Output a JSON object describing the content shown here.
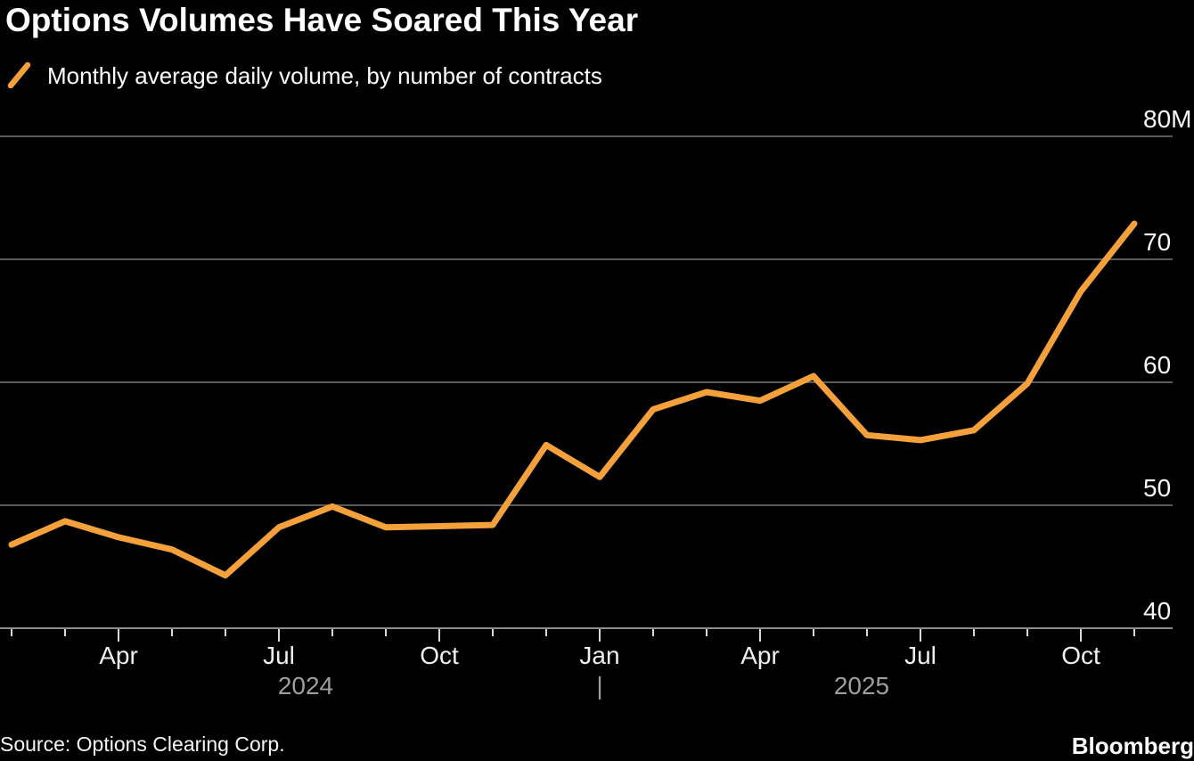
{
  "header": {
    "title": "Options Volumes Have Soared This Year",
    "legend": {
      "swatch_icon": "orange-line-swatch",
      "swatch_color": "#F4A13C",
      "label": "Monthly average daily volume, by number of contracts"
    }
  },
  "chart_data": {
    "type": "line",
    "title": "Options Volumes Have Soared This Year",
    "subtitle": "Monthly average daily volume, by number of contracts",
    "unit": "millions of contracts",
    "grid": "horizontal",
    "legend_position": "top-left",
    "background_color": "#000000",
    "gridline_color": "#595959",
    "axis_color": "#8d8d8d",
    "tick_color": "#d9d9d9",
    "y_label_color": "#f7f7f7",
    "month_label_color": "#efefef",
    "year_label_color": "#9e9e9e",
    "ylim": [
      40,
      80
    ],
    "y_ticks": [
      {
        "value": 80,
        "label": "80M"
      },
      {
        "value": 70,
        "label": "70"
      },
      {
        "value": 60,
        "label": "60"
      },
      {
        "value": 50,
        "label": "50"
      },
      {
        "value": 40,
        "label": "40"
      }
    ],
    "x": [
      "Feb 2024",
      "Mar 2024",
      "Apr 2024",
      "May 2024",
      "Jun 2024",
      "Jul 2024",
      "Aug 2024",
      "Sep 2024",
      "Oct 2024",
      "Nov 2024",
      "Dec 2024",
      "Jan 2025",
      "Feb 2025",
      "Mar 2025",
      "Apr 2025",
      "May 2025",
      "Jun 2025",
      "Jul 2025",
      "Aug 2025",
      "Sep 2025",
      "Oct 2025",
      "Nov 2025"
    ],
    "series": [
      {
        "name": "Monthly average daily volume, by number of contracts",
        "color": "#F4A13C",
        "values": [
          46.8,
          48.7,
          47.4,
          46.4,
          44.3,
          48.2,
          49.9,
          48.2,
          48.3,
          48.4,
          54.9,
          52.3,
          57.8,
          59.2,
          58.5,
          60.5,
          55.7,
          55.3,
          56.1,
          59.9,
          67.4,
          72.9
        ]
      }
    ],
    "x_tick_labels": [
      {
        "month_index": 2,
        "label": "Apr"
      },
      {
        "month_index": 5,
        "label": "Jul"
      },
      {
        "month_index": 8,
        "label": "Oct"
      },
      {
        "month_index": 11,
        "label": "Jan"
      },
      {
        "month_index": 14,
        "label": "Apr"
      },
      {
        "month_index": 17,
        "label": "Jul"
      },
      {
        "month_index": 20,
        "label": "Oct"
      }
    ],
    "year_labels": [
      {
        "label": "2024",
        "month_index": 5.5
      },
      {
        "label": "|",
        "month_index": 11
      },
      {
        "label": "2025",
        "month_index": 15.9
      }
    ]
  },
  "footer": {
    "source": "Source: Options Clearing Corp.",
    "brand": "Bloomberg"
  }
}
